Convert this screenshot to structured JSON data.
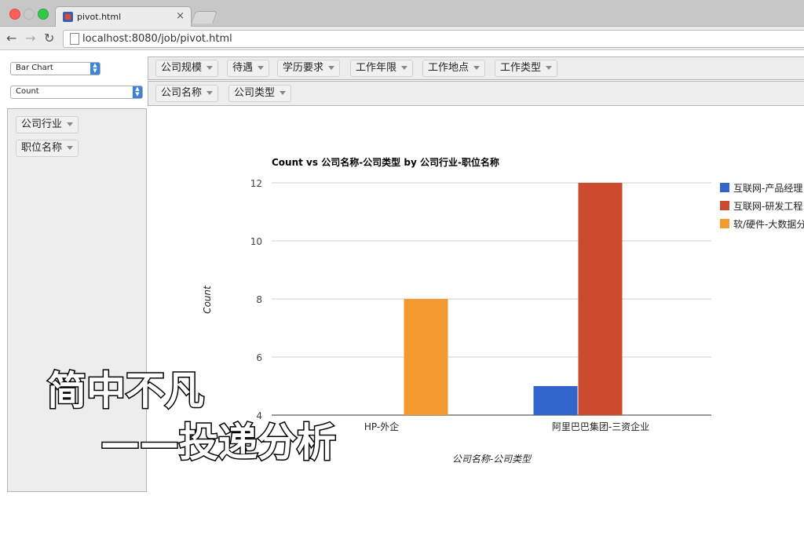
{
  "browser": {
    "tab_title": "pivot.html",
    "tab_close": "×",
    "address": "localhost:8080/job/pivot.html",
    "back": "←",
    "forward": "→",
    "reload": "↻"
  },
  "controls": {
    "renderer": "Bar Chart",
    "aggregator": "Count"
  },
  "col_fields": [
    "公司规模",
    "待遇",
    "学历要求",
    "工作年限",
    "工作地点",
    "工作类型"
  ],
  "row_fields": [
    "公司名称",
    "公司类型"
  ],
  "unused_fields": [
    "公司行业",
    "职位名称"
  ],
  "chart_data": {
    "type": "bar",
    "title": "Count vs 公司名称-公司类型 by 公司行业-职位名称",
    "xlabel": "公司名称-公司类型",
    "ylabel": "Count",
    "categories": [
      "HP-外企",
      "阿里巴巴集团-三资企业"
    ],
    "ylim": [
      4,
      12
    ],
    "yticks": [
      "12",
      "10",
      "8",
      "6",
      "4"
    ],
    "series": [
      {
        "name": "互联网-产品经理",
        "color": "#3366cc",
        "values": [
          null,
          5
        ]
      },
      {
        "name": "互联网-研发工程",
        "color": "#cc4a2e",
        "values": [
          null,
          12
        ]
      },
      {
        "name": "软/硬件-大数据分",
        "color": "#f29a2e",
        "values": [
          8,
          null
        ]
      }
    ],
    "legend": "right",
    "grid": true
  },
  "overlay": {
    "line1": "简中不凡",
    "line2": "——投递分析"
  }
}
